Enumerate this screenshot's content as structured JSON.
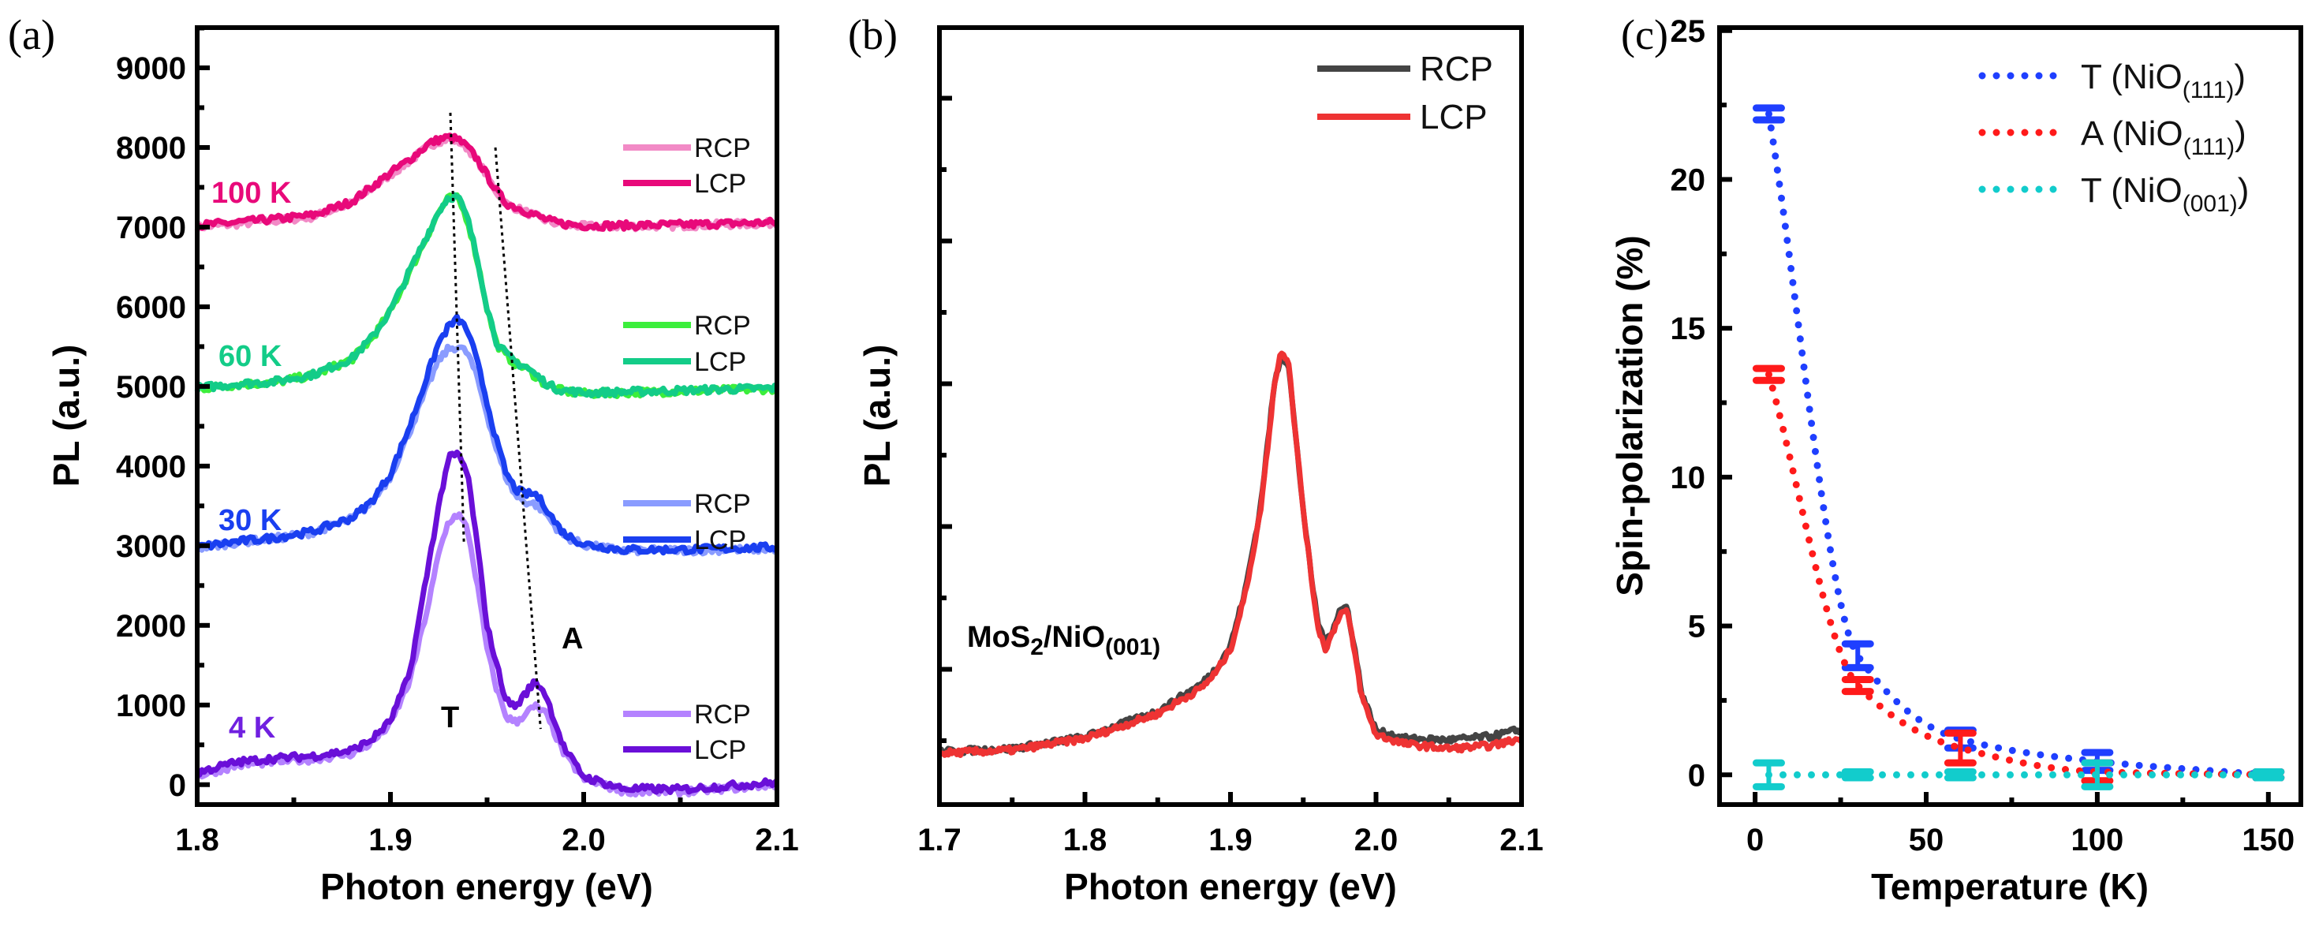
{
  "chart_data": [
    {
      "panel": "(a)",
      "type": "line",
      "xlabel": "Photon energy (eV)",
      "ylabel": "PL (a.u.)",
      "xlim": [
        1.8,
        2.1
      ],
      "ylim": [
        -250,
        9505
      ],
      "xticks": [
        "1.8",
        "1.9",
        "2.0",
        "2.1"
      ],
      "yticks": [
        "0",
        "1000",
        "2000",
        "3000",
        "4000",
        "5000",
        "6000",
        "7000",
        "8000",
        "9000"
      ],
      "annotations": {
        "T": "T",
        "A": "A"
      },
      "guide_lines": [
        {
          "from": [
            1.931,
            8436
          ],
          "to": [
            1.938,
            3050
          ]
        },
        {
          "from": [
            1.9543,
            8000
          ],
          "to": [
            1.9777,
            700
          ]
        }
      ],
      "x": [
        1.8,
        1.82,
        1.84,
        1.86,
        1.88,
        1.89,
        1.9,
        1.91,
        1.92,
        1.925,
        1.93,
        1.935,
        1.94,
        1.945,
        1.95,
        1.955,
        1.96,
        1.965,
        1.97,
        1.975,
        1.98,
        1.985,
        1.99,
        2.0,
        2.02,
        2.05,
        2.1
      ],
      "groups": [
        {
          "temperature": "100 K",
          "color": "#e8097a",
          "series": [
            {
              "name": "RCP",
              "color": "#f28ac6",
              "values": [
                7000,
                7040,
                7080,
                7130,
                7300,
                7480,
                7660,
                7830,
                8020,
                8080,
                8110,
                8080,
                7990,
                7840,
                7640,
                7440,
                7290,
                7240,
                7190,
                7140,
                7090,
                7050,
                7030,
                7010,
                7010,
                7020,
                7050
              ]
            },
            {
              "name": "LCP",
              "color": "#e8097a",
              "values": [
                7020,
                7060,
                7100,
                7150,
                7320,
                7500,
                7680,
                7850,
                8050,
                8100,
                8130,
                8100,
                8000,
                7850,
                7650,
                7450,
                7300,
                7250,
                7200,
                7150,
                7100,
                7060,
                7040,
                7020,
                7020,
                7030,
                7060
              ]
            }
          ]
        },
        {
          "temperature": "60 K",
          "color": "#13cc88",
          "series": [
            {
              "name": "RCP",
              "color": "#3cee3c",
              "values": [
                4970,
                5020,
                5050,
                5140,
                5340,
                5590,
                5940,
                6440,
                6940,
                7190,
                7360,
                7360,
                7080,
                6580,
                5980,
                5530,
                5380,
                5280,
                5230,
                5130,
                5030,
                4970,
                4940,
                4910,
                4920,
                4940,
                4970
              ]
            },
            {
              "name": "LCP",
              "color": "#13cc88",
              "values": [
                4980,
                5030,
                5060,
                5150,
                5350,
                5600,
                5950,
                6450,
                6950,
                7200,
                7380,
                7380,
                7100,
                6600,
                6000,
                5550,
                5400,
                5300,
                5250,
                5150,
                5050,
                4980,
                4950,
                4920,
                4930,
                4950,
                4980
              ]
            }
          ]
        },
        {
          "temperature": "30 K",
          "color": "#1a3ff0",
          "series": [
            {
              "name": "RCP",
              "color": "#8a9cff",
              "values": [
                2970,
                3040,
                3090,
                3170,
                3340,
                3530,
                3870,
                4440,
                5050,
                5330,
                5470,
                5500,
                5420,
                5100,
                4650,
                4200,
                3850,
                3620,
                3550,
                3520,
                3420,
                3250,
                3120,
                3010,
                2940,
                2940,
                2960
              ]
            },
            {
              "name": "LCP",
              "color": "#1a3ff0",
              "values": [
                2980,
                3050,
                3100,
                3180,
                3350,
                3550,
                3900,
                4500,
                5200,
                5550,
                5750,
                5850,
                5700,
                5300,
                4800,
                4300,
                3900,
                3700,
                3650,
                3650,
                3500,
                3300,
                3150,
                3020,
                2950,
                2950,
                2980
              ]
            }
          ]
        },
        {
          "temperature": "4 K",
          "color": "#7020e0",
          "series": [
            {
              "name": "RCP",
              "color": "#b482ff",
              "values": [
                110,
                240,
                290,
                320,
                390,
                520,
                760,
                1300,
                2300,
                2900,
                3300,
                3400,
                3200,
                2500,
                1700,
                1200,
                850,
                780,
                900,
                980,
                900,
                650,
                380,
                70,
                -80,
                -90,
                0
              ]
            },
            {
              "name": "LCP",
              "color": "#6a0fd8",
              "values": [
                150,
                280,
                330,
                360,
                430,
                560,
                800,
                1400,
                2800,
                3500,
                4100,
                4150,
                3900,
                3000,
                2000,
                1500,
                1050,
                980,
                1150,
                1300,
                1150,
                800,
                450,
                100,
                -50,
                -60,
                30
              ]
            }
          ]
        }
      ]
    },
    {
      "panel": "(b)",
      "type": "line",
      "xlabel": "Photon energy (eV)",
      "ylabel": "PL (a.u.)",
      "xlim": [
        1.7,
        2.1
      ],
      "ylim": [
        0,
        1
      ],
      "xticks": [
        "1.7",
        "1.8",
        "1.9",
        "2.0",
        "2.1"
      ],
      "annotation": {
        "main": "MoS",
        "sub1": "2",
        "mid": "/NiO",
        "sub2": "(001)"
      },
      "x": [
        1.7,
        1.75,
        1.8,
        1.85,
        1.88,
        1.89,
        1.9,
        1.91,
        1.92,
        1.925,
        1.93,
        1.935,
        1.94,
        1.945,
        1.95,
        1.955,
        1.96,
        1.965,
        1.97,
        1.975,
        1.98,
        1.985,
        1.99,
        2.0,
        2.02,
        2.05,
        2.08,
        2.1
      ],
      "series": [
        {
          "name": "RCP",
          "color": "#444444",
          "values": [
            0.068,
            0.072,
            0.087,
            0.12,
            0.155,
            0.175,
            0.205,
            0.275,
            0.375,
            0.455,
            0.54,
            0.58,
            0.565,
            0.47,
            0.38,
            0.3,
            0.235,
            0.21,
            0.225,
            0.25,
            0.255,
            0.205,
            0.145,
            0.095,
            0.085,
            0.083,
            0.088,
            0.097
          ]
        },
        {
          "name": "LCP",
          "color": "#ee3333",
          "values": [
            0.066,
            0.07,
            0.085,
            0.117,
            0.15,
            0.17,
            0.2,
            0.27,
            0.37,
            0.45,
            0.54,
            0.585,
            0.57,
            0.47,
            0.38,
            0.3,
            0.23,
            0.2,
            0.22,
            0.245,
            0.25,
            0.2,
            0.14,
            0.09,
            0.078,
            0.072,
            0.076,
            0.085
          ]
        }
      ]
    },
    {
      "panel": "(c)",
      "type": "scatter",
      "xlabel": "Temperature (K)",
      "ylabel": "Spin-polarization (%)",
      "xlim": [
        -10.4,
        159.5
      ],
      "ylim": [
        -1.0,
        25.1
      ],
      "xticks": [
        "0",
        "50",
        "100",
        "150"
      ],
      "yticks": [
        "0",
        "5",
        "10",
        "15",
        "20",
        "25"
      ],
      "legend_position": "top-right",
      "x": [
        4,
        30,
        60,
        100,
        150
      ],
      "series": [
        {
          "name": {
            "prefix": "T (NiO",
            "sub": "(111)",
            "suffix": ")"
          },
          "color": "#1f3fff",
          "values": [
            22.2,
            4.0,
            1.2,
            0.45,
            0.0
          ],
          "errors": [
            0.2,
            0.4,
            0.3,
            0.3,
            0.1
          ]
        },
        {
          "name": {
            "prefix": "A (NiO",
            "sub": "(111)",
            "suffix": ")"
          },
          "color": "#ff1a1a",
          "values": [
            13.45,
            3.0,
            0.9,
            0.1,
            0.0
          ],
          "errors": [
            0.2,
            0.2,
            0.5,
            0.3,
            0.1
          ]
        },
        {
          "name": {
            "prefix": "T (NiO",
            "sub": "(001)",
            "suffix": ")"
          },
          "color": "#12cccc",
          "values": [
            0.0,
            0.0,
            0.0,
            0.0,
            0.0
          ],
          "errors": [
            0.4,
            0.1,
            0.1,
            0.4,
            0.1
          ]
        }
      ]
    }
  ]
}
